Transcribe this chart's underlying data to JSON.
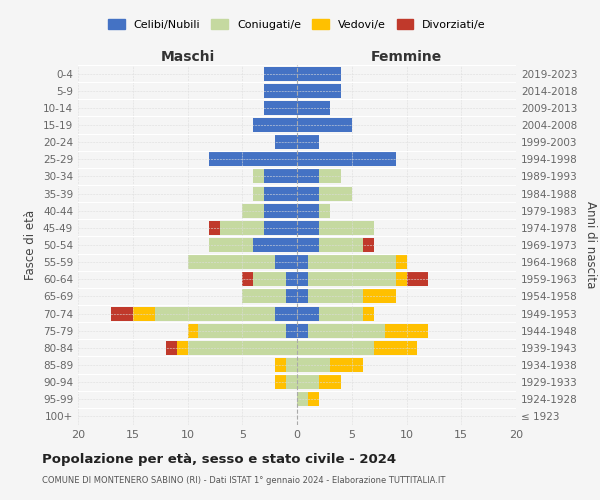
{
  "age_groups": [
    "100+",
    "95-99",
    "90-94",
    "85-89",
    "80-84",
    "75-79",
    "70-74",
    "65-69",
    "60-64",
    "55-59",
    "50-54",
    "45-49",
    "40-44",
    "35-39",
    "30-34",
    "25-29",
    "20-24",
    "15-19",
    "10-14",
    "5-9",
    "0-4"
  ],
  "birth_years": [
    "≤ 1923",
    "1924-1928",
    "1929-1933",
    "1934-1938",
    "1939-1943",
    "1944-1948",
    "1949-1953",
    "1954-1958",
    "1959-1963",
    "1964-1968",
    "1969-1973",
    "1974-1978",
    "1979-1983",
    "1984-1988",
    "1989-1993",
    "1994-1998",
    "1999-2003",
    "2004-2008",
    "2009-2013",
    "2014-2018",
    "2019-2023"
  ],
  "maschi": {
    "celibi": [
      0,
      0,
      0,
      0,
      0,
      1,
      2,
      1,
      1,
      2,
      4,
      3,
      3,
      3,
      3,
      8,
      2,
      4,
      3,
      3,
      3
    ],
    "coniugati": [
      0,
      0,
      1,
      1,
      10,
      8,
      11,
      4,
      3,
      8,
      4,
      4,
      2,
      1,
      1,
      0,
      0,
      0,
      0,
      0,
      0
    ],
    "vedovi": [
      0,
      0,
      1,
      1,
      1,
      1,
      2,
      0,
      0,
      0,
      0,
      0,
      0,
      0,
      0,
      0,
      0,
      0,
      0,
      0,
      0
    ],
    "divorziati": [
      0,
      0,
      0,
      0,
      1,
      0,
      2,
      0,
      1,
      0,
      0,
      1,
      0,
      0,
      0,
      0,
      0,
      0,
      0,
      0,
      0
    ]
  },
  "femmine": {
    "nubili": [
      0,
      0,
      0,
      0,
      0,
      1,
      2,
      1,
      1,
      1,
      2,
      2,
      2,
      2,
      2,
      9,
      2,
      5,
      3,
      4,
      4
    ],
    "coniugate": [
      0,
      1,
      2,
      3,
      7,
      7,
      4,
      5,
      8,
      8,
      4,
      5,
      1,
      3,
      2,
      0,
      0,
      0,
      0,
      0,
      0
    ],
    "vedove": [
      0,
      1,
      2,
      3,
      4,
      4,
      1,
      3,
      1,
      1,
      0,
      0,
      0,
      0,
      0,
      0,
      0,
      0,
      0,
      0,
      0
    ],
    "divorziate": [
      0,
      0,
      0,
      0,
      0,
      0,
      0,
      0,
      2,
      0,
      1,
      0,
      0,
      0,
      0,
      0,
      0,
      0,
      0,
      0,
      0
    ]
  },
  "colors": {
    "celibi": "#4472c4",
    "coniugati": "#c5d9a0",
    "vedovi": "#ffc000",
    "divorziati": "#c0392b"
  },
  "xlim": 20,
  "title": "Popolazione per età, sesso e stato civile - 2024",
  "subtitle": "COMUNE DI MONTENERO SABINO (RI) - Dati ISTAT 1° gennaio 2024 - Elaborazione TUTTITALIA.IT",
  "xlabel_left": "Maschi",
  "xlabel_right": "Femmine",
  "ylabel_left": "Fasce di età",
  "ylabel_right": "Anni di nascita",
  "legend_labels": [
    "Celibi/Nubili",
    "Coniugati/e",
    "Vedovi/e",
    "Divorziati/e"
  ],
  "bg_color": "#f5f5f5"
}
